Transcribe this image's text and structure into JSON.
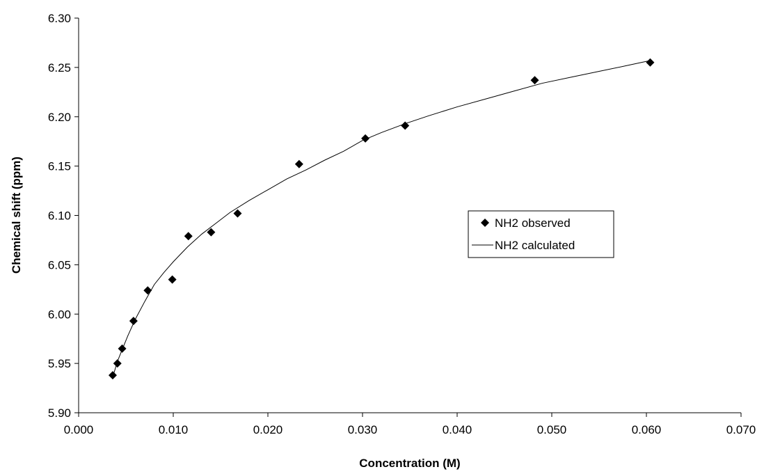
{
  "chart_data": {
    "type": "scatter",
    "xlabel": "Concentration (M)",
    "ylabel": "Chemical shift (ppm)",
    "xlim": [
      0.0,
      0.07
    ],
    "ylim": [
      5.9,
      6.3
    ],
    "x_ticks": [
      "0.000",
      "0.010",
      "0.020",
      "0.030",
      "0.040",
      "0.050",
      "0.060",
      "0.070"
    ],
    "y_ticks": [
      "5.90",
      "5.95",
      "6.00",
      "6.05",
      "6.10",
      "6.15",
      "6.20",
      "6.25",
      "6.30"
    ],
    "grid": false,
    "legend_position": "right-middle",
    "series": [
      {
        "name": "NH2 observed",
        "kind": "markers",
        "marker": "diamond",
        "color": "#000000",
        "points": [
          [
            0.0036,
            5.938
          ],
          [
            0.0041,
            5.95
          ],
          [
            0.0046,
            5.965
          ],
          [
            0.0058,
            5.993
          ],
          [
            0.0073,
            6.024
          ],
          [
            0.0099,
            6.035
          ],
          [
            0.0116,
            6.079
          ],
          [
            0.014,
            6.083
          ],
          [
            0.0168,
            6.102
          ],
          [
            0.0233,
            6.152
          ],
          [
            0.0303,
            6.178
          ],
          [
            0.0345,
            6.191
          ],
          [
            0.0482,
            6.237
          ],
          [
            0.0604,
            6.255
          ]
        ]
      },
      {
        "name": "NH2 calculated",
        "kind": "line",
        "color": "#000000",
        "points": [
          [
            0.0036,
            5.936
          ],
          [
            0.0041,
            5.952
          ],
          [
            0.0046,
            5.964
          ],
          [
            0.0052,
            5.978
          ],
          [
            0.006,
            5.995
          ],
          [
            0.007,
            6.013
          ],
          [
            0.008,
            6.03
          ],
          [
            0.009,
            6.042
          ],
          [
            0.01,
            6.053
          ],
          [
            0.0115,
            6.068
          ],
          [
            0.013,
            6.081
          ],
          [
            0.0145,
            6.092
          ],
          [
            0.016,
            6.103
          ],
          [
            0.018,
            6.115
          ],
          [
            0.02,
            6.126
          ],
          [
            0.022,
            6.137
          ],
          [
            0.024,
            6.146
          ],
          [
            0.026,
            6.156
          ],
          [
            0.028,
            6.165
          ],
          [
            0.03,
            6.176
          ],
          [
            0.032,
            6.184
          ],
          [
            0.0345,
            6.193
          ],
          [
            0.037,
            6.201
          ],
          [
            0.04,
            6.21
          ],
          [
            0.043,
            6.218
          ],
          [
            0.046,
            6.226
          ],
          [
            0.049,
            6.234
          ],
          [
            0.052,
            6.24
          ],
          [
            0.055,
            6.246
          ],
          [
            0.058,
            6.252
          ],
          [
            0.0604,
            6.257
          ]
        ]
      }
    ]
  }
}
